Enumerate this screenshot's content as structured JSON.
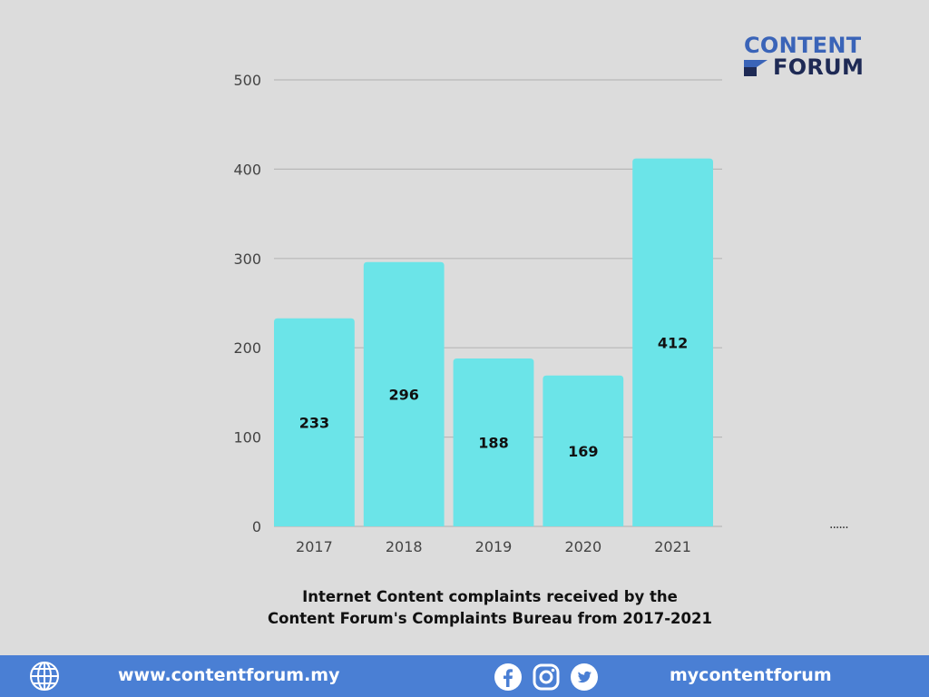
{
  "brand": {
    "line1": "CONTENT",
    "line2": "FORUM",
    "primary_color": "#3a64b8",
    "dark_color": "#1e2a55"
  },
  "chart_data": {
    "type": "bar",
    "categories": [
      "2017",
      "2018",
      "2019",
      "2020",
      "2021"
    ],
    "values": [
      233,
      296,
      188,
      169,
      412
    ],
    "data_labels": [
      "233",
      "296",
      "188",
      "169",
      "412"
    ],
    "ylim": [
      0,
      500
    ],
    "yticks": [
      0,
      100,
      200,
      300,
      400,
      500
    ],
    "grid": true,
    "bar_color": "#6be4e8",
    "title": "",
    "xlabel": "",
    "ylabel": ""
  },
  "caption": {
    "line1": "Internet Content complaints received by the",
    "line2": "Content Forum's Complaints Bureau from 2017-2021"
  },
  "footer": {
    "background_color": "#4a7fd4",
    "website": "www.contentforum.my",
    "social_handle": "mycontentforum",
    "icons": [
      "globe-icon",
      "facebook-icon",
      "instagram-icon",
      "twitter-icon"
    ]
  }
}
